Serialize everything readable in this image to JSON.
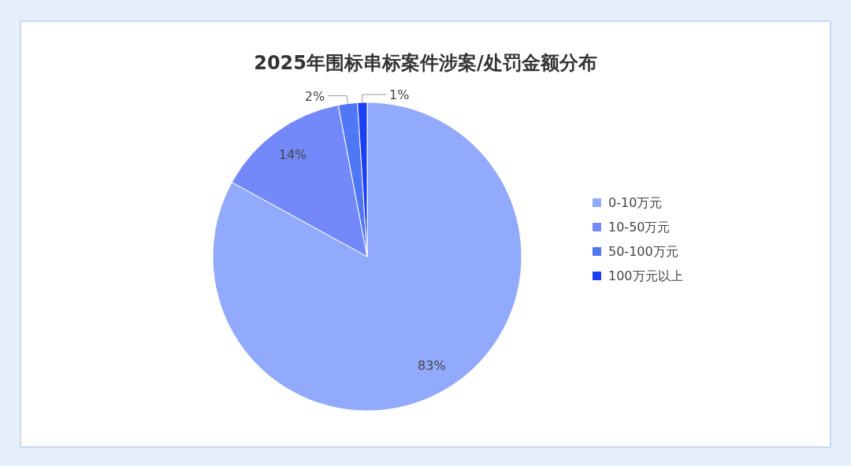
{
  "chart_data": {
    "type": "pie",
    "title": "2025年围标串标案件涉案/处罚金额分布",
    "categories": [
      "0-10万元",
      "10-50万元",
      "50-100万元",
      "100万元以上"
    ],
    "values": [
      83,
      14,
      2,
      1
    ],
    "colors": [
      "#91aafb",
      "#7389fa",
      "#5077f4",
      "#1c3ff5"
    ],
    "value_labels": [
      "83%",
      "14%",
      "2%",
      "1%"
    ],
    "legend": "right"
  }
}
